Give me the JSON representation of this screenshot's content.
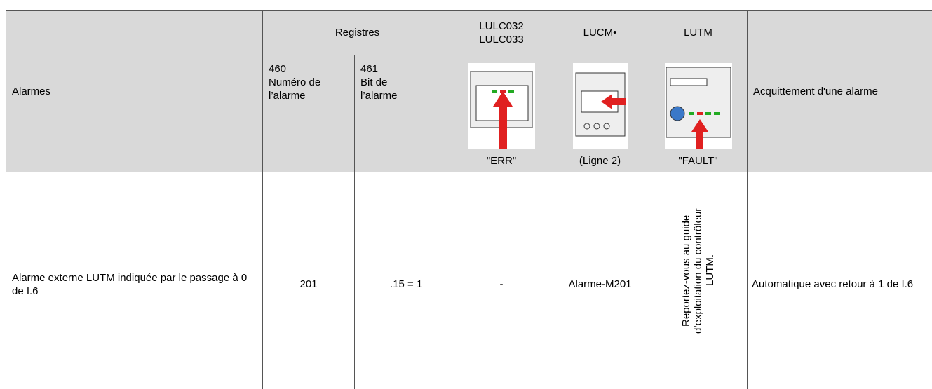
{
  "table": {
    "header_row1": [
      "Alarmes",
      "Registres",
      "LULC032\nLULC033",
      "LUCM•",
      "LUTM",
      "Acquittement d'une alarme"
    ],
    "header_row2": [
      "460\nNuméro de\nl’alarme",
      "461\nBit de\nl’alarme",
      "\"ERR\"",
      "(Ligne 2)",
      "\"FAULT\""
    ],
    "rows": [
      [
        "Alarme externe LUTM indiquée par le passage à 0 de I.6",
        "201",
        "_.15 = 1",
        "-",
        "Alarme-M201",
        "Reportez-vous au guide d’exploitation du contrôleur LUTM.",
        "Automatique avec retour à 1 de I.6"
      ]
    ]
  }
}
